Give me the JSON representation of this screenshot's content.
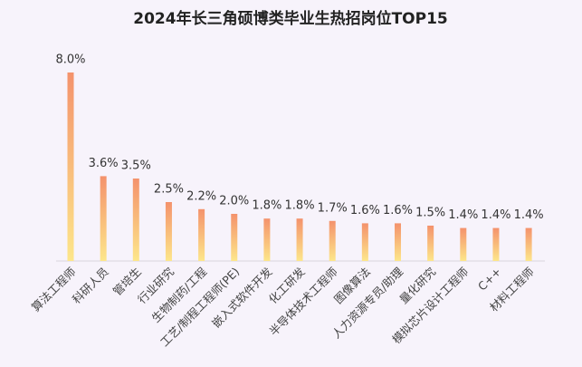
{
  "chart_data": {
    "type": "bar",
    "title": "2024年长三角硕博类毕业生热招岗位TOP15",
    "categories": [
      "算法工程师",
      "科研人员",
      "管培生",
      "行业研究",
      "生物制药/工程",
      "工艺/制程工程师(PE)",
      "嵌入式软件开发",
      "化工研发",
      "半导体技术工程师",
      "图像算法",
      "人力资源专员/助理",
      "量化研究",
      "模拟芯片设计工程师",
      "C++",
      "材料工程师"
    ],
    "values": [
      8.0,
      3.6,
      3.5,
      2.5,
      2.2,
      2.0,
      1.8,
      1.8,
      1.7,
      1.6,
      1.6,
      1.5,
      1.4,
      1.4,
      1.4
    ],
    "value_labels": [
      "8.0%",
      "3.6%",
      "3.5%",
      "2.5%",
      "2.2%",
      "2.0%",
      "1.8%",
      "1.8%",
      "1.7%",
      "1.6%",
      "1.6%",
      "1.5%",
      "1.4%",
      "1.4%",
      "1.4%"
    ],
    "gradient": [
      "#f4926c",
      "#fde68a"
    ],
    "grid": false
  }
}
